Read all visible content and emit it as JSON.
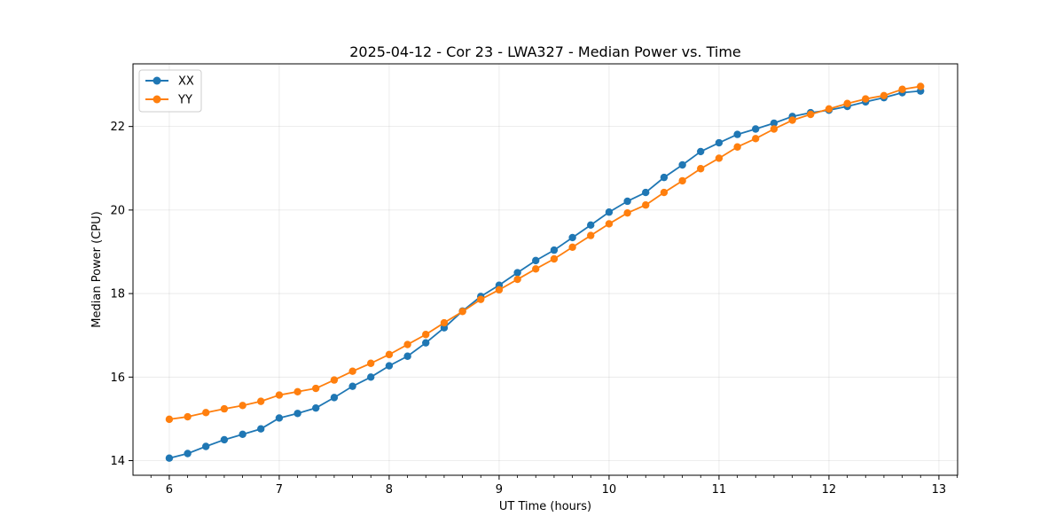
{
  "chart_data": {
    "type": "line",
    "title": "2025-04-12 - Cor 23 - LWA327 - Median Power vs. Time",
    "xlabel": "UT Time (hours)",
    "ylabel": "Median Power (CPU)",
    "xlim": [
      5.67,
      13.17
    ],
    "ylim": [
      13.65,
      23.5
    ],
    "xticks": [
      6,
      7,
      8,
      9,
      10,
      11,
      12,
      13
    ],
    "yticks": [
      14,
      16,
      18,
      20,
      22
    ],
    "grid": true,
    "legend_position": "upper-left",
    "x": [
      6.0,
      6.167,
      6.333,
      6.5,
      6.667,
      6.833,
      7.0,
      7.167,
      7.333,
      7.5,
      7.667,
      7.833,
      8.0,
      8.167,
      8.333,
      8.5,
      8.667,
      8.833,
      9.0,
      9.167,
      9.333,
      9.5,
      9.667,
      9.833,
      10.0,
      10.167,
      10.333,
      10.5,
      10.667,
      10.833,
      11.0,
      11.167,
      11.333,
      11.5,
      11.667,
      11.833,
      12.0,
      12.167,
      12.333,
      12.5,
      12.667,
      12.833
    ],
    "series": [
      {
        "name": "XX",
        "color": "#1f77b4",
        "values": [
          14.06,
          14.17,
          14.34,
          14.5,
          14.63,
          14.76,
          15.02,
          15.13,
          15.26,
          15.51,
          15.78,
          16.0,
          16.27,
          16.5,
          16.82,
          17.18,
          17.58,
          17.93,
          18.2,
          18.5,
          18.79,
          19.04,
          19.34,
          19.64,
          19.95,
          20.21,
          20.42,
          20.78,
          21.08,
          21.4,
          21.61,
          21.81,
          21.94,
          22.08,
          22.24,
          22.33,
          22.39,
          22.48,
          22.59,
          22.69,
          22.81,
          22.85
        ]
      },
      {
        "name": "YY",
        "color": "#ff7f0e",
        "values": [
          14.99,
          15.05,
          15.15,
          15.24,
          15.32,
          15.42,
          15.57,
          15.65,
          15.73,
          15.93,
          16.14,
          16.33,
          16.54,
          16.78,
          17.02,
          17.3,
          17.57,
          17.86,
          18.09,
          18.34,
          18.59,
          18.83,
          19.11,
          19.39,
          19.67,
          19.93,
          20.12,
          20.42,
          20.7,
          20.99,
          21.24,
          21.51,
          21.71,
          21.94,
          22.15,
          22.29,
          22.42,
          22.55,
          22.66,
          22.74,
          22.89,
          22.96
        ]
      }
    ]
  }
}
